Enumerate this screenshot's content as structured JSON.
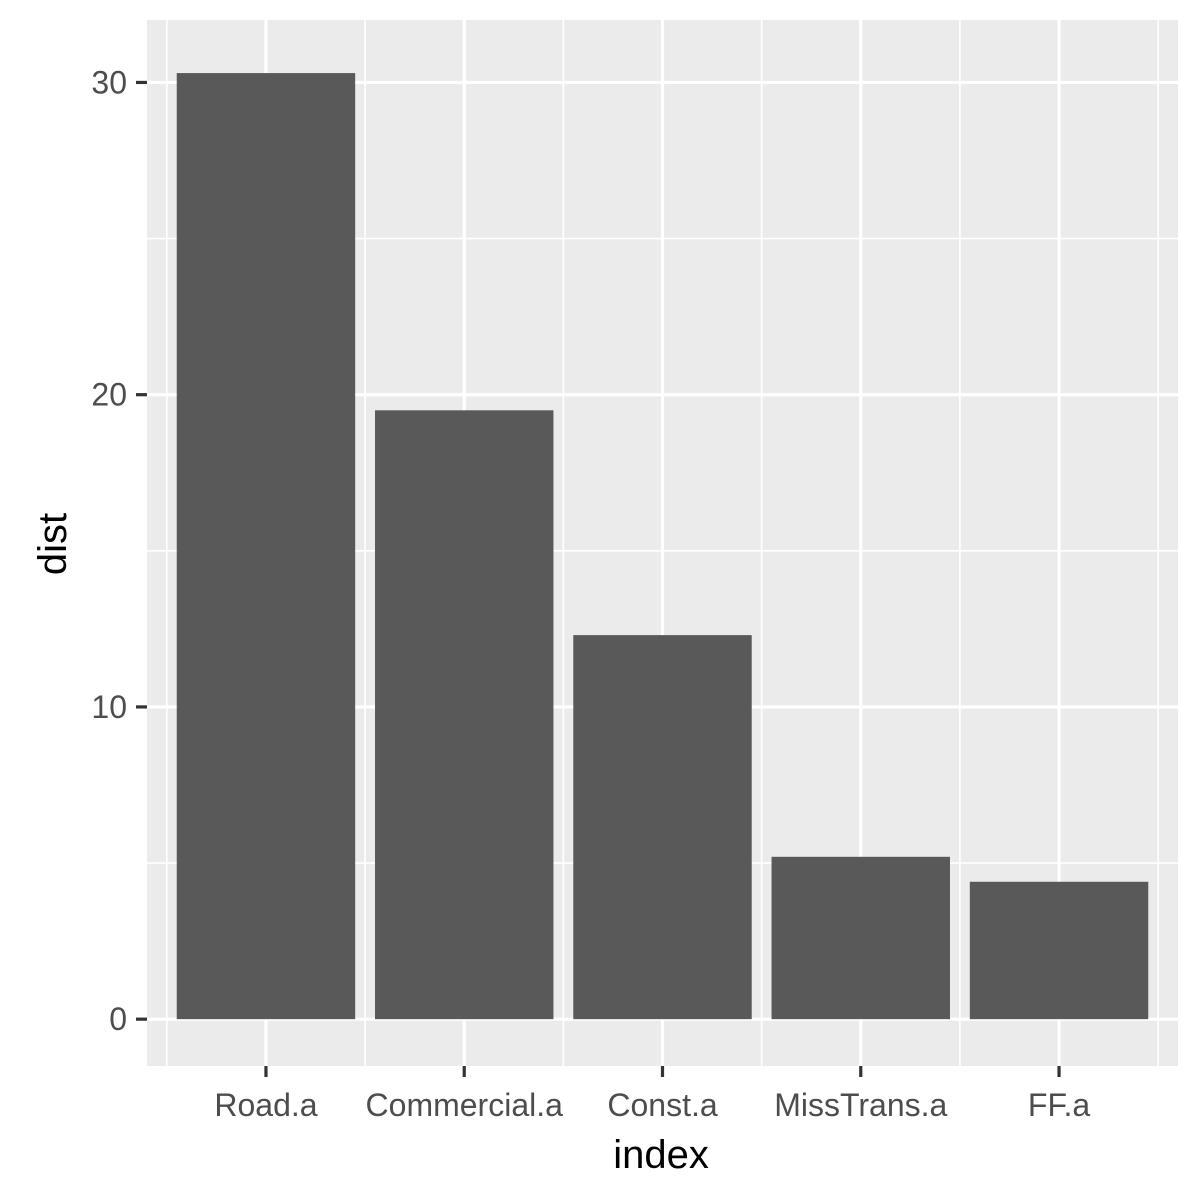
{
  "chart_data": {
    "type": "bar",
    "categories": [
      "Road.a",
      "Commercial.a",
      "Const.a",
      "MissTrans.a",
      "FF.a"
    ],
    "values": [
      30.3,
      19.5,
      12.3,
      5.2,
      4.4
    ],
    "xlabel": "index",
    "ylabel": "dist",
    "ylim": [
      -1.5,
      32
    ],
    "yticks": [
      0,
      10,
      20,
      30
    ],
    "grid": true,
    "legend": "none",
    "colors": {
      "bar": "#595959",
      "panel": "#ebebeb",
      "grid": "#ffffff",
      "tick_text": "#4d4d4d",
      "tick_mark": "#333333"
    }
  }
}
